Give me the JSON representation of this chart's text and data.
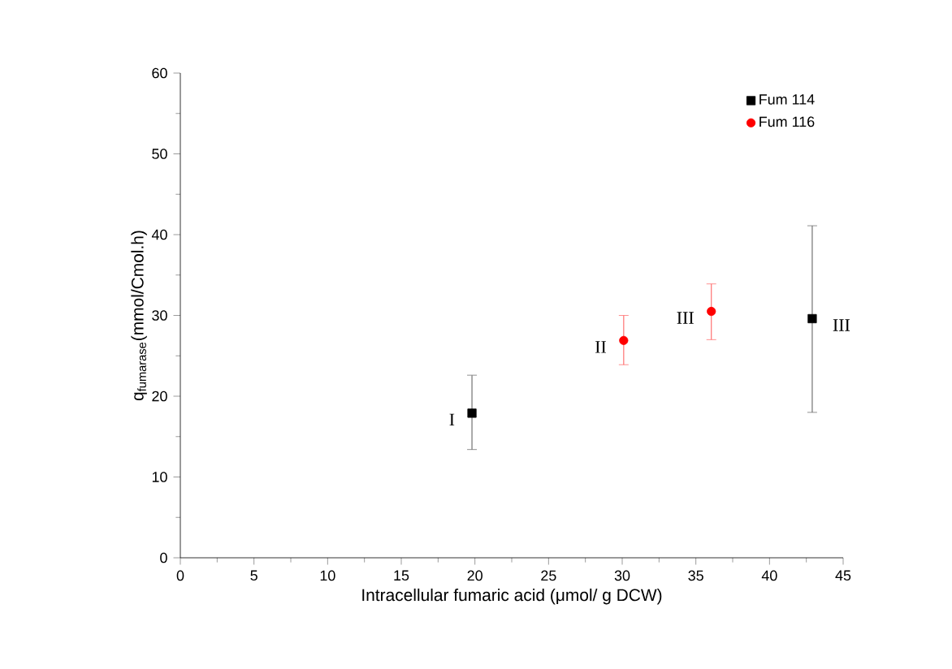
{
  "chart_data": {
    "type": "scatter",
    "xlabel": "Intracellular fumaric acid (μmol/ g DCW)",
    "ylabel": "q$_{fumarase}$(mmol/Cmol.h)",
    "xlim": [
      0,
      45
    ],
    "xticks": [
      0,
      5,
      10,
      15,
      20,
      25,
      30,
      35,
      40,
      45
    ],
    "ylim": [
      0,
      60
    ],
    "yticks": [
      0,
      10,
      20,
      30,
      40,
      50,
      60
    ],
    "legend": "top right",
    "grid": false,
    "series": [
      {
        "name": "Fum 114",
        "color": "#000000",
        "marker": "square",
        "x": [
          19.8,
          42.9
        ],
        "values": [
          17.9,
          29.6
        ],
        "errors": [
          [
            13.4,
            22.6
          ],
          [
            18.0,
            41.1
          ]
        ]
      },
      {
        "name": "Fum 116",
        "color": "#ff0000",
        "marker": "circle",
        "x": [
          30.1,
          36.05
        ],
        "values": [
          26.9,
          30.5
        ],
        "errors": [
          [
            23.9,
            30.0
          ],
          [
            27.0,
            33.9
          ]
        ]
      }
    ],
    "annotations": [
      {
        "text": "I",
        "x": 19.8,
        "y": 17.9
      },
      {
        "text": "II",
        "x": 30.1,
        "y": 26.9
      },
      {
        "text": "III",
        "x": 36.05,
        "y": 30.5
      },
      {
        "text": "III",
        "x": 42.9,
        "y": 29.6
      }
    ]
  }
}
